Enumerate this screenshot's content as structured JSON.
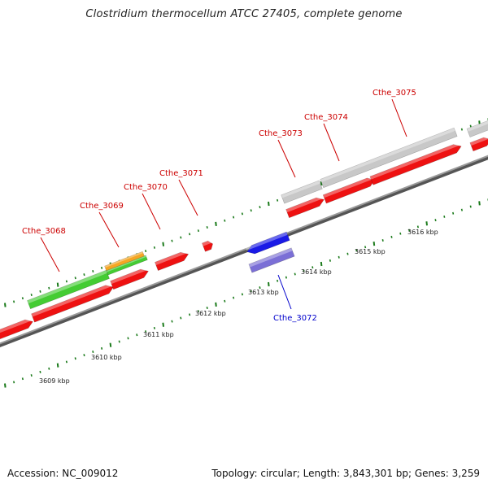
{
  "title": "Clostridium thermocellum ATCC 27405, complete genome",
  "footer": {
    "accession": "Accession: NC_009012",
    "summary": "Topology: circular; Length: 3,843,301 bp; Genes: 3,259"
  },
  "colors": {
    "backbone": "#8c8c8c",
    "tick": "#1a7a1a",
    "gene_forward": "#ee1111",
    "gene_reverse": "#1a1ae6",
    "cds_forward_green": "#44cc33",
    "cds_orange": "#f5a623",
    "cds_gray": "#c8c8c8",
    "cds_purple": "#7b6fd6",
    "label_forward": "#cc0000",
    "label_reverse": "#0000cc"
  },
  "scale_labels": [
    "3609 kbp",
    "3610 kbp",
    "3611 kbp",
    "3612 kbp",
    "3613 kbp",
    "3614 kbp",
    "3615 kbp",
    "3616 kbp"
  ],
  "gene_labels": [
    {
      "name": "Cthe_3068",
      "strand": "forward"
    },
    {
      "name": "Cthe_3069",
      "strand": "forward"
    },
    {
      "name": "Cthe_3070",
      "strand": "forward"
    },
    {
      "name": "Cthe_3071",
      "strand": "forward"
    },
    {
      "name": "Cthe_3072",
      "strand": "reverse"
    },
    {
      "name": "Cthe_3073",
      "strand": "forward"
    },
    {
      "name": "Cthe_3074",
      "strand": "forward"
    },
    {
      "name": "Cthe_3075",
      "strand": "forward"
    }
  ]
}
